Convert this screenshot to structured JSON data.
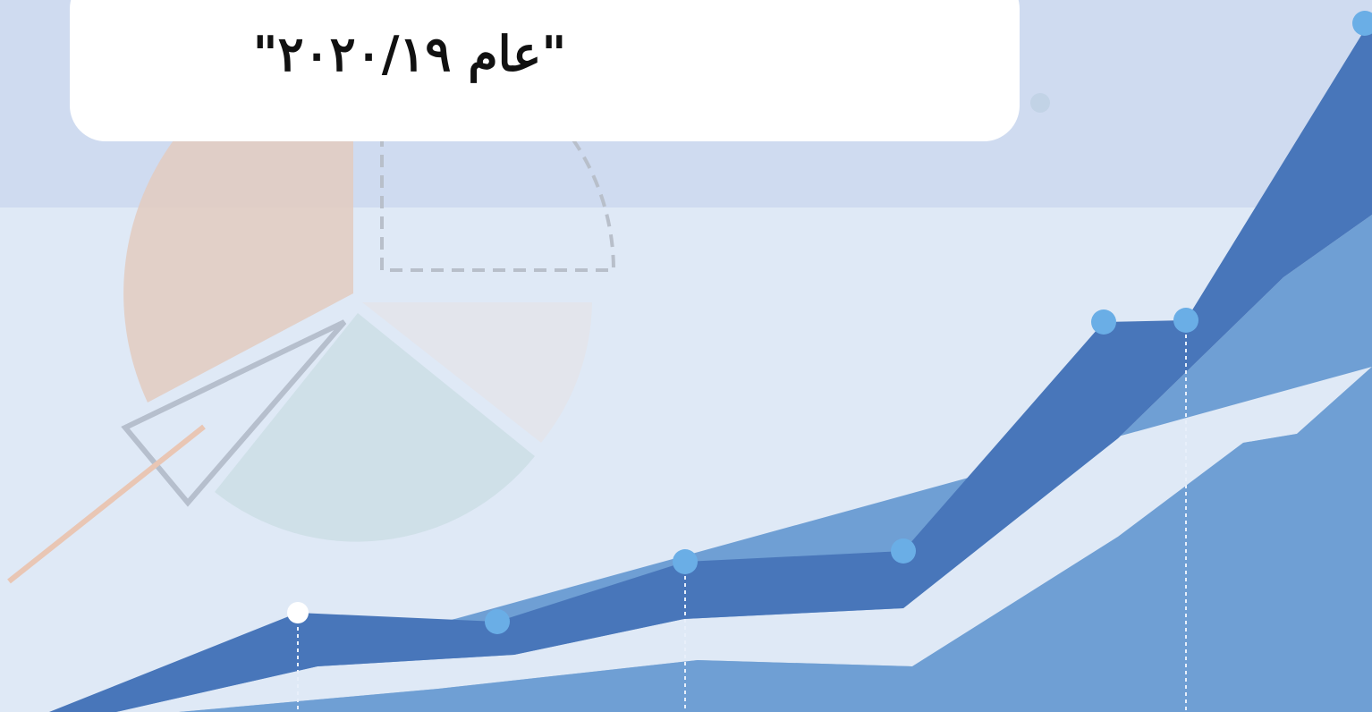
{
  "banner": {
    "text": "\"عام ٢٠٢٠/١٩\""
  }
}
